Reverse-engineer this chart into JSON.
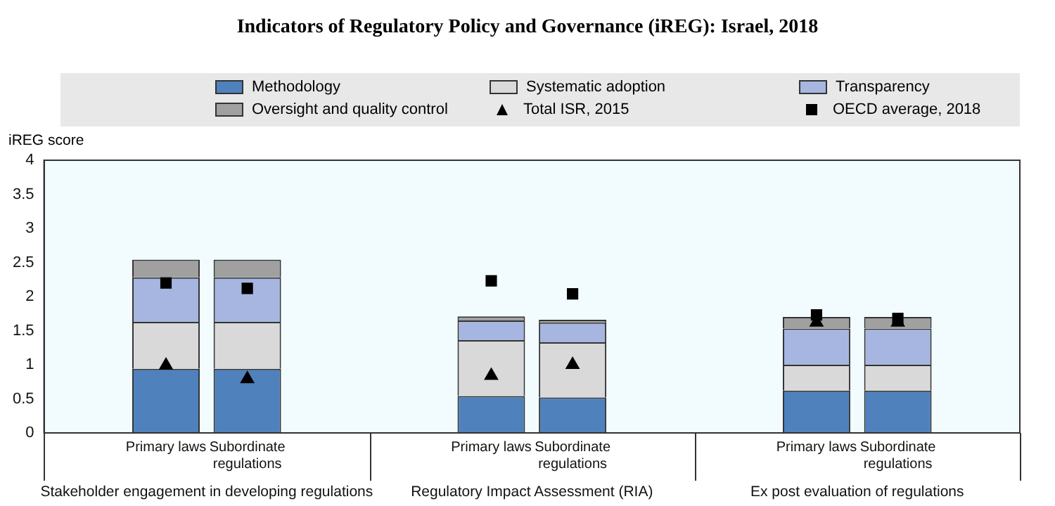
{
  "chart_data": {
    "type": "bar",
    "title": "Indicators of Regulatory Policy and Governance (iREG): Israel, 2018",
    "ylabel": "iREG score",
    "categories": [
      null,
      "Primary laws",
      "Subordinate regulations",
      null,
      null,
      "Primary laws",
      "Subordinate regulations",
      null,
      null,
      "Primary laws",
      "Subordinate regulations",
      null
    ],
    "annotations": [
      "Stakeholder engagement in developing regulations",
      "Regulatory Impact Assessment (RIA)",
      "Ex post evaluation of regulations"
    ],
    "stacked": true,
    "ylim": [
      0,
      4
    ],
    "yticks": [
      0,
      0.5,
      1,
      1.5,
      2,
      2.5,
      3,
      3.5,
      4
    ],
    "grid": false,
    "legend": "top",
    "series": [
      {
        "name": "Methodology",
        "color": "#4f81bd",
        "values": [
          null,
          0.94,
          0.94,
          null,
          null,
          0.54,
          0.52,
          null,
          null,
          0.62,
          0.62,
          null
        ]
      },
      {
        "name": "Systematic adoption",
        "color": "#d9d9d9",
        "values": [
          null,
          0.69,
          0.69,
          null,
          null,
          0.82,
          0.81,
          null,
          null,
          0.38,
          0.38,
          null
        ]
      },
      {
        "name": "Transparency",
        "color": "#a6b6e0",
        "values": [
          null,
          0.65,
          0.65,
          null,
          null,
          0.29,
          0.29,
          null,
          null,
          0.53,
          0.53,
          null
        ]
      },
      {
        "name": "Oversight and quality control",
        "color": "#a0a0a0",
        "values": [
          null,
          0.26,
          0.26,
          null,
          null,
          0.06,
          0.04,
          null,
          null,
          0.17,
          0.17,
          null
        ]
      },
      {
        "name": "Total ISR, 2015",
        "type": "scatter",
        "marker": "triangle",
        "color": "#000000",
        "values": [
          null,
          0.99,
          0.79,
          null,
          null,
          0.84,
          1.0,
          null,
          null,
          1.62,
          1.62,
          null
        ]
      },
      {
        "name": "OECD average, 2018",
        "type": "scatter",
        "marker": "square",
        "color": "#000000",
        "values": [
          null,
          2.2,
          2.12,
          null,
          null,
          2.23,
          2.04,
          null,
          null,
          1.73,
          1.68,
          null
        ]
      }
    ]
  }
}
